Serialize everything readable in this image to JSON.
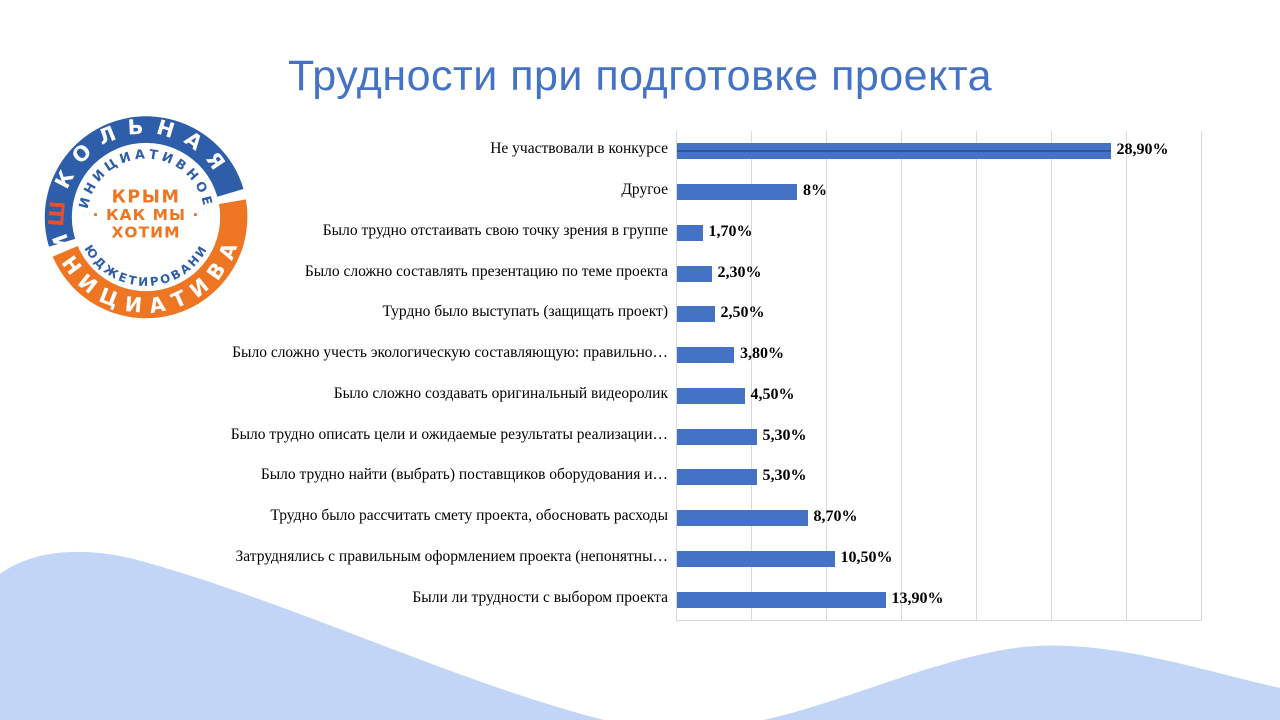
{
  "slide": {
    "title": "Трудности при подготовке проекта",
    "accent_color": "#4472C4",
    "wave_color": "#C3D5F6"
  },
  "logo": {
    "top_ring_first_letter": "Ш",
    "top_ring_rest": "КОЛЬНАЯ",
    "top_ring_text": "ШКОЛЬНАЯ",
    "bottom_ring_text": "ИНИЦИАТИВА",
    "inner_top_text": "ИНИЦИАТИВНОЕ",
    "inner_bottom_text": "БЮДЖЕТИРОВАНИЕ",
    "center_line1": "КРЫМ",
    "center_line2": "· КАК МЫ ·",
    "center_line3": "ХОТИМ",
    "blue": "#2E5DA9",
    "orange": "#EE7623",
    "sh_color": "#E8502A"
  },
  "chart_data": {
    "type": "bar",
    "orientation": "horizontal",
    "categories": [
      "Не участвовали в конкурсе",
      "Другое",
      "Было трудно отстаивать свою точку зрения в группе",
      "Было сложно составлять презентацию по теме проекта",
      "Турдно было выступать (защищать проект)",
      "Было сложно учесть экологическую составляющую: правильно…",
      "Было сложно создавать оригинальный видеоролик",
      "Было трудно описать цели и ожидаемые результаты реализации…",
      "Было трудно найти (выбрать) поставщиков оборудования и…",
      "Трудно было рассчитать смету проекта, обосновать расходы",
      "Затруднялись с правильным оформлением проекта (непонятны…",
      "Были ли трудности с выбором проекта"
    ],
    "values": [
      28.9,
      8,
      1.7,
      2.3,
      2.5,
      3.8,
      4.5,
      5.3,
      5.3,
      8.7,
      10.5,
      13.9
    ],
    "value_labels": [
      "28,90%",
      "8%",
      "1,70%",
      "2,30%",
      "2,50%",
      "3,80%",
      "4,50%",
      "5,30%",
      "5,30%",
      "8,70%",
      "10,50%",
      "13,90%"
    ],
    "title": "",
    "xlabel": "",
    "ylabel": "",
    "xlim": [
      0,
      35
    ],
    "grid_step": 5,
    "grid": true,
    "legend": false,
    "bar_color": "#4472C4",
    "gridline_color": "#D9D9D9"
  }
}
